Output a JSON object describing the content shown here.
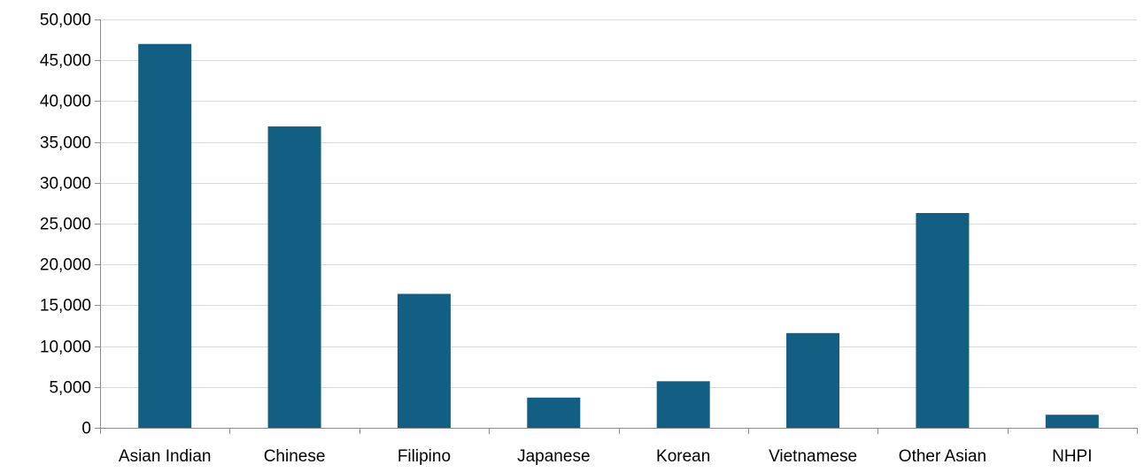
{
  "chart_data": {
    "type": "bar",
    "title": "",
    "xlabel": "",
    "ylabel": "",
    "categories": [
      "Asian Indian",
      "Chinese",
      "Filipino",
      "Japanese",
      "Korean",
      "Vietnamese",
      "Other Asian",
      "NHPI"
    ],
    "values": [
      47000,
      36900,
      16400,
      3700,
      5700,
      11600,
      26300,
      1600
    ],
    "ylim": [
      0,
      50000
    ],
    "yticks": [
      0,
      5000,
      10000,
      15000,
      20000,
      25000,
      30000,
      35000,
      40000,
      45000,
      50000
    ],
    "ytick_labels": [
      "0",
      "5,000",
      "10,000",
      "15,000",
      "20,000",
      "25,000",
      "30,000",
      "35,000",
      "40,000",
      "45,000",
      "50,000"
    ],
    "grid": true,
    "legend": "none",
    "colors": {
      "bar": "#135f84",
      "grid": "#d9d9d9",
      "axis": "#8c8c8c",
      "text": "#000000"
    }
  }
}
